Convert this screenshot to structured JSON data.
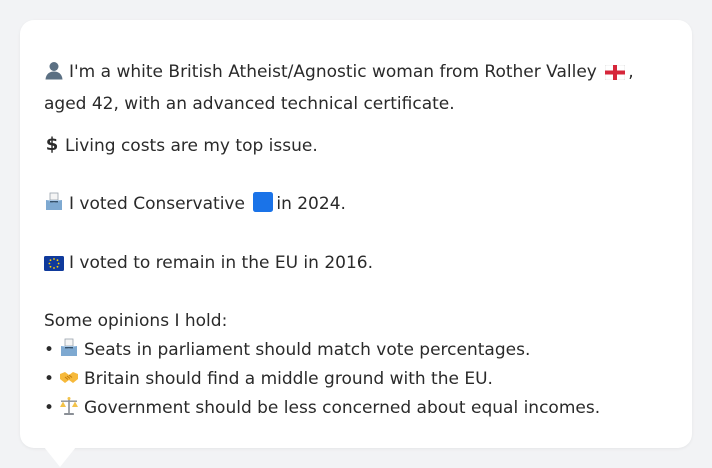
{
  "profile": {
    "intro_pre": "I'm a white British Atheist/Agnostic woman from Rother Valley",
    "intro_post": ", aged 42, with an advanced technical certificate.",
    "issue": "Living costs are my top issue.",
    "vote_pre": "I voted Conservative",
    "vote_post": "in 2024.",
    "eu": "I voted to remain in the EU in 2016.",
    "opinions_heading": "Some opinions I hold:",
    "opinions": [
      "Seats in parliament should match vote percentages.",
      "Britain should find a middle ground with the EU.",
      "Government should be less concerned about equal incomes."
    ]
  },
  "icons": {
    "person": "person-icon",
    "flag": "england-flag-icon",
    "money": "dollar-icon",
    "ballot": "ballot-box-icon",
    "party": "blue-square-icon",
    "eu": "eu-flag-icon",
    "handshake": "handshake-icon",
    "scales": "scales-icon"
  },
  "colors": {
    "background": "#f2f3f5",
    "bubble": "#ffffff",
    "text": "#2a2a2a",
    "conservative_blue": "#1a73e8"
  }
}
